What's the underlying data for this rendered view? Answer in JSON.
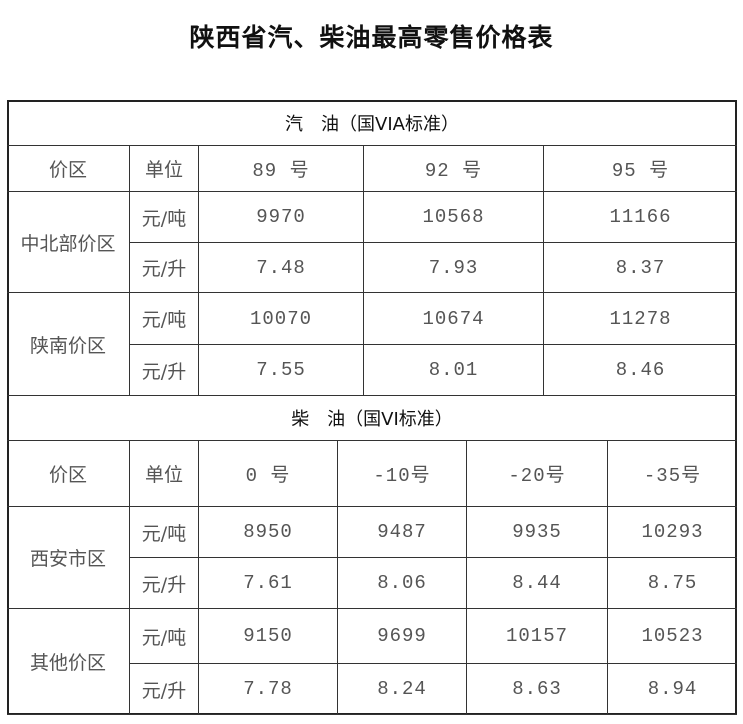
{
  "title": "陕西省汽、柴油最高零售价格表",
  "gasoline": {
    "section_title": "汽　油（国VIA标准）",
    "headers": [
      "价区",
      "单位",
      "89 号",
      "92 号",
      "95 号"
    ],
    "regions": [
      {
        "name": "中北部价区",
        "rows": [
          {
            "unit": "元/吨",
            "values": [
              "9970",
              "10568",
              "11166"
            ]
          },
          {
            "unit": "元/升",
            "values": [
              "7.48",
              "7.93",
              "8.37"
            ]
          }
        ]
      },
      {
        "name": "陕南价区",
        "rows": [
          {
            "unit": "元/吨",
            "values": [
              "10070",
              "10674",
              "11278"
            ]
          },
          {
            "unit": "元/升",
            "values": [
              "7.55",
              "8.01",
              "8.46"
            ]
          }
        ]
      }
    ]
  },
  "diesel": {
    "section_title": "柴　油（国VI标准）",
    "headers": [
      "价区",
      "单位",
      "0 号",
      "-10号",
      "-20号",
      "-35号"
    ],
    "regions": [
      {
        "name": "西安市区",
        "rows": [
          {
            "unit": "元/吨",
            "values": [
              "8950",
              "9487",
              "9935",
              "10293"
            ]
          },
          {
            "unit": "元/升",
            "values": [
              "7.61",
              "8.06",
              "8.44",
              "8.75"
            ]
          }
        ]
      },
      {
        "name": "其他价区",
        "rows": [
          {
            "unit": "元/吨",
            "values": [
              "9150",
              "9699",
              "10157",
              "10523"
            ]
          },
          {
            "unit": "元/升",
            "values": [
              "7.78",
              "8.24",
              "8.63",
              "8.94"
            ]
          }
        ]
      }
    ]
  }
}
